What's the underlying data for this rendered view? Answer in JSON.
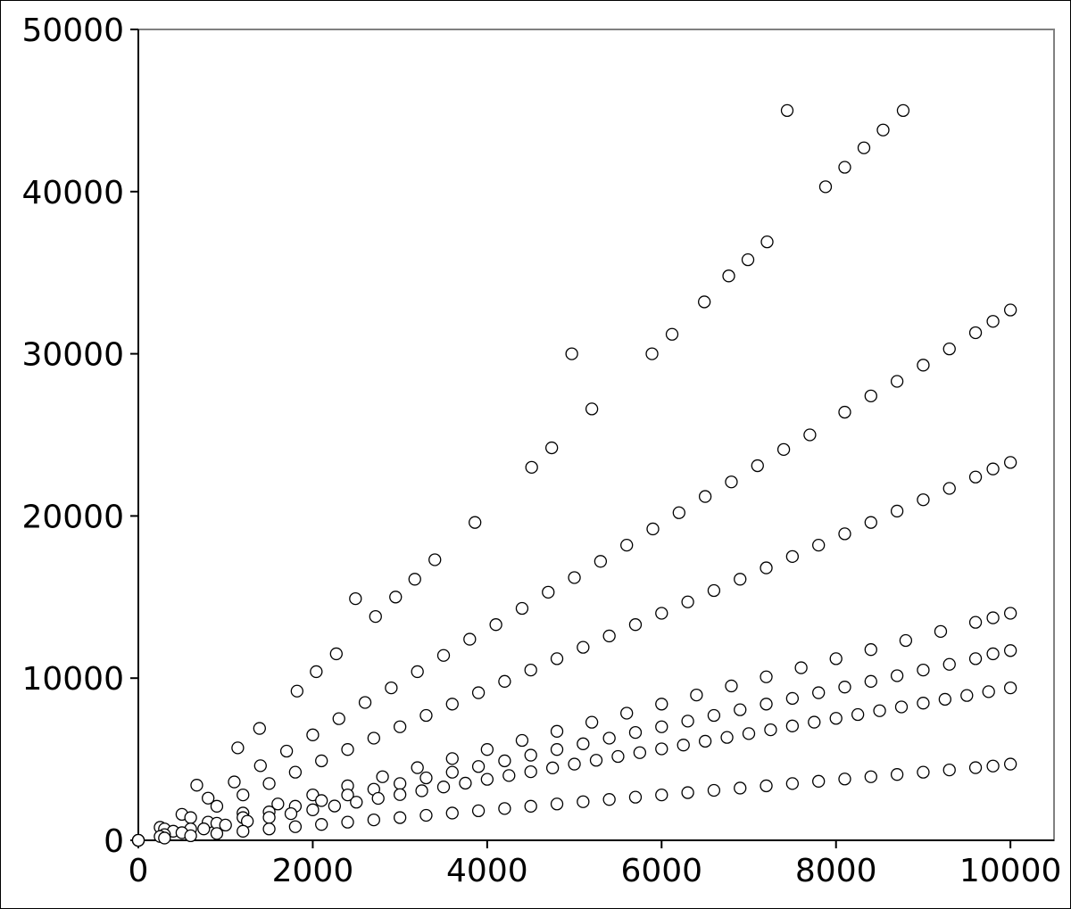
{
  "chart_data": {
    "type": "scatter",
    "title": "",
    "xlabel": "",
    "ylabel": "",
    "xlim": [
      0,
      10500
    ],
    "ylim": [
      0,
      50000
    ],
    "x_ticks": [
      0,
      2000,
      4000,
      6000,
      8000,
      10000
    ],
    "y_ticks": [
      0,
      10000,
      20000,
      30000,
      40000,
      50000
    ],
    "x_tick_labels": [
      "0",
      "2000",
      "4000",
      "6000",
      "8000",
      "10000"
    ],
    "y_tick_labels": [
      "0",
      "10000",
      "20000",
      "30000",
      "40000",
      "50000"
    ],
    "grid": false,
    "legend": "none",
    "marker": {
      "shape": "circle",
      "fill": "#ffffff",
      "stroke": "#000000"
    },
    "series": [
      {
        "x": [
          670,
          1140,
          1390,
          1820,
          2040,
          2270,
          2490,
          2720,
          2950,
          3170,
          3400,
          3860,
          4510,
          4740,
          4970,
          5200,
          5890,
          6120,
          6490,
          6770,
          6990,
          7210,
          7440,
          7880,
          8100,
          8320,
          8540,
          8770
        ],
        "y": [
          3400,
          5700,
          6900,
          9200,
          10400,
          11500,
          14900,
          13800,
          15000,
          16100,
          17300,
          19600,
          23000,
          24200,
          30000,
          26600,
          30000,
          31200,
          33200,
          34800,
          35800,
          36900,
          45000,
          40300,
          41500,
          42700,
          43800,
          45000
        ]
      },
      {
        "x": [
          0,
          250,
          500,
          800,
          1100,
          1400,
          1700,
          2000,
          2300,
          2600,
          2900,
          3200,
          3500,
          3800,
          4100,
          4400,
          4700,
          5000,
          5300,
          5600,
          5900,
          6200,
          6500,
          6800,
          7100,
          7400,
          7700,
          8100,
          8400,
          8700,
          9000,
          9300,
          9600,
          9800,
          10000
        ],
        "y": [
          0,
          800,
          1600,
          2600,
          3600,
          4600,
          5500,
          6500,
          7500,
          8500,
          9400,
          10400,
          11400,
          12400,
          13300,
          14300,
          15300,
          16200,
          17200,
          18200,
          19200,
          20200,
          21200,
          22100,
          23100,
          24100,
          25000,
          26400,
          27400,
          28300,
          29300,
          30300,
          31300,
          32000,
          32700
        ]
      },
      {
        "x": [
          0,
          300,
          600,
          900,
          1200,
          1500,
          1800,
          2100,
          2400,
          2700,
          3000,
          3300,
          3600,
          3900,
          4200,
          4500,
          4800,
          5100,
          5400,
          5700,
          6000,
          6300,
          6600,
          6900,
          7200,
          7500,
          7800,
          8100,
          8400,
          8700,
          9000,
          9300,
          9600,
          9800,
          10000
        ],
        "y": [
          0,
          700,
          1400,
          2100,
          2800,
          3500,
          4200,
          4900,
          5600,
          6300,
          7000,
          7700,
          8400,
          9100,
          9800,
          10500,
          11200,
          11900,
          12600,
          13300,
          14000,
          14700,
          15400,
          16100,
          16800,
          17500,
          18200,
          18900,
          19600,
          20300,
          21000,
          21700,
          22400,
          22900,
          23300
        ]
      },
      {
        "x": [
          0,
          400,
          800,
          1200,
          1600,
          2000,
          2400,
          2800,
          3200,
          3600,
          4000,
          4400,
          4800,
          5200,
          5600,
          6000,
          6400,
          6800,
          7200,
          7600,
          8000,
          8400,
          8800,
          9200,
          9600,
          9800,
          10000
        ],
        "y": [
          0,
          560,
          1120,
          1680,
          2240,
          2800,
          3360,
          3920,
          4480,
          5040,
          5600,
          6160,
          6720,
          7280,
          7840,
          8400,
          8960,
          9520,
          10080,
          10640,
          11200,
          11760,
          12320,
          12880,
          13440,
          13720,
          14000
        ]
      },
      {
        "x": [
          0,
          300,
          600,
          900,
          1200,
          1500,
          1800,
          2100,
          2400,
          2700,
          3000,
          3300,
          3600,
          3900,
          4200,
          4500,
          4800,
          5100,
          5400,
          5700,
          6000,
          6300,
          6600,
          6900,
          7200,
          7500,
          7800,
          8100,
          8400,
          8700,
          9000,
          9300,
          9600,
          9800,
          10000
        ],
        "y": [
          0,
          350,
          700,
          1050,
          1400,
          1750,
          2100,
          2450,
          2800,
          3150,
          3500,
          3850,
          4200,
          4550,
          4900,
          5250,
          5600,
          5950,
          6300,
          6650,
          7000,
          7350,
          7700,
          8050,
          8400,
          8750,
          9100,
          9450,
          9800,
          10150,
          10500,
          10850,
          11200,
          11500,
          11700
        ]
      },
      {
        "x": [
          0,
          250,
          500,
          750,
          1000,
          1250,
          1500,
          1750,
          2000,
          2250,
          2500,
          2750,
          3000,
          3250,
          3500,
          3750,
          4000,
          4250,
          4500,
          4750,
          5000,
          5250,
          5500,
          5750,
          6000,
          6250,
          6500,
          6750,
          7000,
          7250,
          7500,
          7750,
          8000,
          8250,
          8500,
          8750,
          9000,
          9250,
          9500,
          9750,
          10000
        ],
        "y": [
          0,
          235,
          470,
          705,
          940,
          1175,
          1410,
          1645,
          1880,
          2115,
          2350,
          2585,
          2820,
          3055,
          3290,
          3525,
          3760,
          3995,
          4230,
          4465,
          4700,
          4935,
          5170,
          5405,
          5640,
          5875,
          6110,
          6345,
          6580,
          6815,
          7050,
          7285,
          7520,
          7755,
          7990,
          8225,
          8460,
          8695,
          8930,
          9165,
          9400
        ]
      },
      {
        "x": [
          0,
          300,
          600,
          900,
          1200,
          1500,
          1800,
          2100,
          2400,
          2700,
          3000,
          3300,
          3600,
          3900,
          4200,
          4500,
          4800,
          5100,
          5400,
          5700,
          6000,
          6300,
          6600,
          6900,
          7200,
          7500,
          7800,
          8100,
          8400,
          8700,
          9000,
          9300,
          9600,
          9800,
          10000
        ],
        "y": [
          0,
          140,
          280,
          420,
          560,
          700,
          840,
          980,
          1120,
          1260,
          1400,
          1540,
          1680,
          1820,
          1960,
          2100,
          2240,
          2380,
          2520,
          2660,
          2800,
          2940,
          3080,
          3220,
          3360,
          3500,
          3640,
          3780,
          3920,
          4060,
          4200,
          4340,
          4480,
          4580,
          4700
        ]
      }
    ]
  }
}
